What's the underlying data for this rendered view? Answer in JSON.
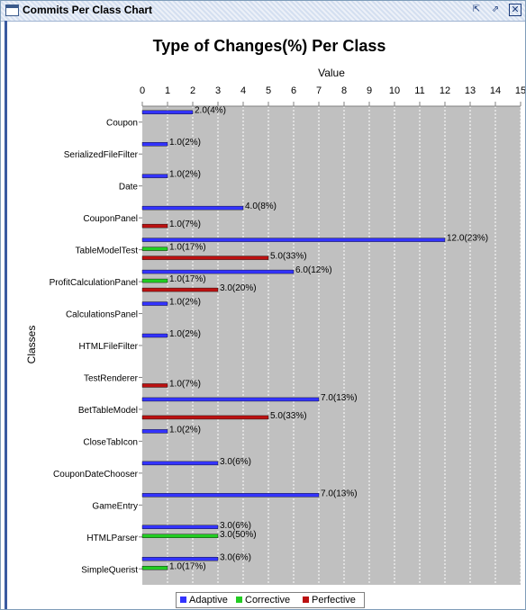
{
  "window": {
    "title": "Commits Per Class Chart",
    "icon": "window-icon",
    "buttons": [
      {
        "name": "restore-icon",
        "glyph": "⇱"
      },
      {
        "name": "maximize-icon",
        "glyph": "⇗"
      },
      {
        "name": "close-icon",
        "glyph": "✕"
      }
    ]
  },
  "chart_data": {
    "type": "bar",
    "orientation": "horizontal",
    "title": "Type of Changes(%) Per Class",
    "xlabel": "Value",
    "ylabel": "Classes",
    "xlim": [
      0,
      15
    ],
    "xticks": [
      0,
      1,
      2,
      3,
      4,
      5,
      6,
      7,
      8,
      9,
      10,
      11,
      12,
      13,
      14,
      15
    ],
    "grid": true,
    "legend_position": "bottom",
    "categories": [
      "Coupon",
      "SerializedFileFilter",
      "Date",
      "CouponPanel",
      "TableModelTest",
      "ProfitCalculationPanel",
      "CalculationsPanel",
      "HTMLFileFilter",
      "TestRenderer",
      "BetTableModel",
      "CloseTabIcon",
      "CouponDateChooser",
      "GameEntry",
      "HTMLParser",
      "SimpleQuerist"
    ],
    "series": [
      {
        "name": "Adaptive",
        "color": "#3333ff",
        "values": [
          2,
          1,
          1,
          4,
          12,
          6,
          1,
          1,
          null,
          7,
          1,
          3,
          7,
          3,
          3
        ],
        "labels": [
          "2.0(4%)",
          "1.0(2%)",
          "1.0(2%)",
          "4.0(8%)",
          "12.0(23%)",
          "6.0(12%)",
          "1.0(2%)",
          "1.0(2%)",
          "",
          "7.0(13%)",
          "1.0(2%)",
          "3.0(6%)",
          "7.0(13%)",
          "3.0(6%)",
          "3.0(6%)"
        ]
      },
      {
        "name": "Corrective",
        "color": "#22cc22",
        "values": [
          null,
          null,
          null,
          null,
          1,
          1,
          null,
          null,
          null,
          null,
          null,
          null,
          null,
          3,
          1
        ],
        "labels": [
          "",
          "",
          "",
          "",
          "1.0(17%)",
          "1.0(17%)",
          "",
          "",
          "",
          "",
          "",
          "",
          "",
          "3.0(50%)",
          "1.0(17%)"
        ]
      },
      {
        "name": "Perfective",
        "color": "#bb1111",
        "values": [
          null,
          null,
          null,
          1,
          5,
          3,
          null,
          null,
          1,
          5,
          null,
          null,
          null,
          null,
          null
        ],
        "labels": [
          "",
          "",
          "",
          "1.0(7%)",
          "5.0(33%)",
          "3.0(20%)",
          "",
          "",
          "1.0(7%)",
          "5.0(33%)",
          "",
          "",
          "",
          "",
          ""
        ]
      }
    ]
  }
}
